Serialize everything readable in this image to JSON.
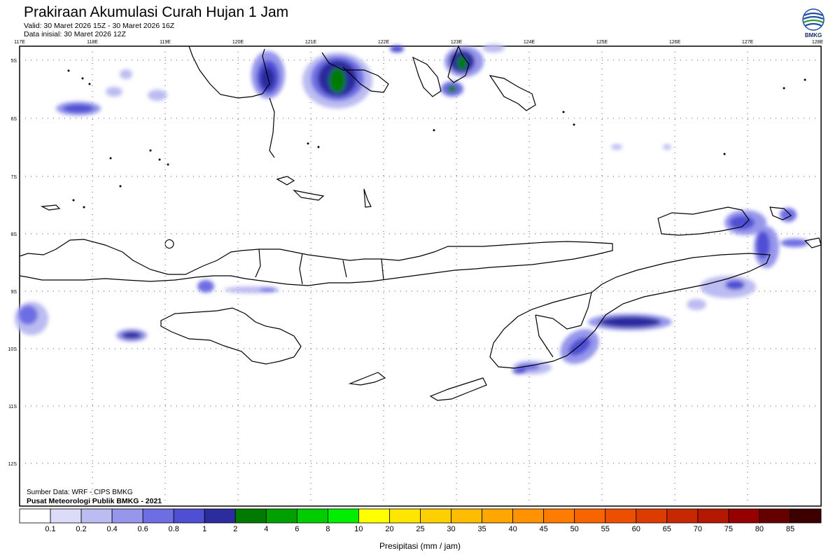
{
  "header": {
    "title": "Prakiraan Akumulasi Curah Hujan 1 Jam",
    "valid": "Valid: 30 Maret 2026 15Z -  30 Maret 2026 16Z",
    "initial": "Data inisial: 30 Maret 2026 12Z"
  },
  "logo": {
    "text": "BMKG",
    "icon": "bmkg-logo-icon"
  },
  "map": {
    "lon_labels": [
      "117E",
      "118E",
      "119E",
      "120E",
      "121E",
      "122E",
      "123E",
      "124E",
      "125E",
      "126E",
      "127E",
      "128E"
    ],
    "lat_labels": [
      "5S",
      "6S",
      "7S",
      "8S",
      "9S",
      "10S",
      "11S",
      "12S"
    ],
    "land_color": "#ffffff",
    "grid": "dotted"
  },
  "footer": {
    "source": "Sumber Data: WRF - CIPS BMKG",
    "publisher": "Pusat Meteorologi Publik BMKG - 2021"
  },
  "colorbar": {
    "title": "Presipitasi (mm / jam)",
    "labels": [
      "0.1",
      "0.2",
      "0.4",
      "0.6",
      "0.8",
      "1",
      "2",
      "4",
      "6",
      "8",
      "10",
      "20",
      "25",
      "30",
      "35",
      "40",
      "45",
      "50",
      "55",
      "60",
      "65",
      "70",
      "75",
      "80",
      "85"
    ],
    "colors": [
      "#ffffff",
      "#dcdcf8",
      "#bcbcf2",
      "#9696ec",
      "#6e6ee4",
      "#4f4fd4",
      "#2c2c9e",
      "#007a00",
      "#00a000",
      "#00cc00",
      "#00ee00",
      "#ffff00",
      "#ffe600",
      "#ffd000",
      "#ffbc00",
      "#ffa600",
      "#ff9200",
      "#ff7c00",
      "#f86400",
      "#ee4e00",
      "#dc3c00",
      "#c82800",
      "#b41800",
      "#960000",
      "#640000",
      "#3c0000"
    ]
  }
}
